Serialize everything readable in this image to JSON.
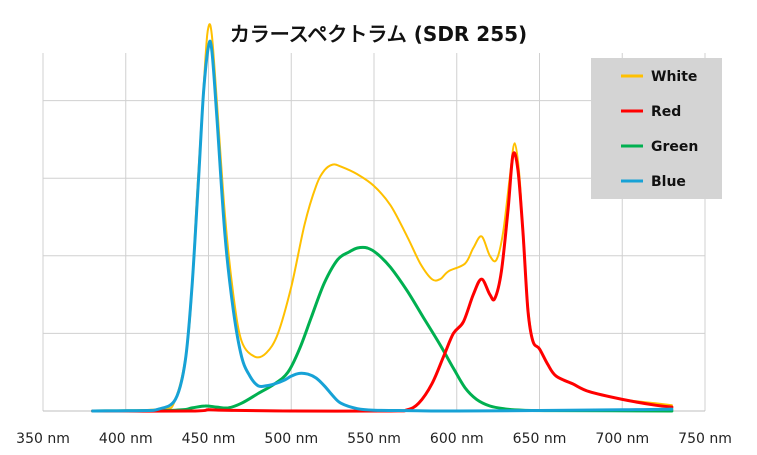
{
  "chart_data": {
    "type": "line",
    "title": "カラースペクトラム (SDR 255)",
    "xlabel": "",
    "ylabel": "",
    "xlim": [
      350,
      750
    ],
    "ylim": [
      0,
      1
    ],
    "grid": true,
    "legend_position": "top-right",
    "x_ticks": [
      350,
      400,
      450,
      500,
      550,
      600,
      650,
      700,
      750
    ],
    "x_tick_labels": [
      "350 nm",
      "400 nm",
      "450 nm",
      "500 nm",
      "550 nm",
      "600 nm",
      "650 nm",
      "700 nm",
      "750 nm"
    ],
    "y_gridlines": [
      0.2,
      0.4,
      0.6,
      0.8
    ],
    "series": [
      {
        "name": "White",
        "color": "#FFC000",
        "points": [
          [
            380,
            0
          ],
          [
            420,
            0.005
          ],
          [
            430,
            0.03
          ],
          [
            438,
            0.2
          ],
          [
            443,
            0.55
          ],
          [
            448,
            0.9
          ],
          [
            450,
            0.99
          ],
          [
            452,
            0.97
          ],
          [
            455,
            0.8
          ],
          [
            460,
            0.5
          ],
          [
            465,
            0.3
          ],
          [
            470,
            0.18
          ],
          [
            478,
            0.14
          ],
          [
            485,
            0.15
          ],
          [
            492,
            0.2
          ],
          [
            500,
            0.32
          ],
          [
            508,
            0.48
          ],
          [
            515,
            0.58
          ],
          [
            520,
            0.62
          ],
          [
            525,
            0.635
          ],
          [
            530,
            0.63
          ],
          [
            540,
            0.61
          ],
          [
            550,
            0.58
          ],
          [
            560,
            0.53
          ],
          [
            570,
            0.45
          ],
          [
            578,
            0.38
          ],
          [
            585,
            0.34
          ],
          [
            590,
            0.34
          ],
          [
            595,
            0.36
          ],
          [
            605,
            0.38
          ],
          [
            610,
            0.42
          ],
          [
            615,
            0.45
          ],
          [
            620,
            0.4
          ],
          [
            624,
            0.39
          ],
          [
            628,
            0.46
          ],
          [
            632,
            0.6
          ],
          [
            635,
            0.69
          ],
          [
            638,
            0.6
          ],
          [
            640,
            0.45
          ],
          [
            643,
            0.27
          ],
          [
            646,
            0.18
          ],
          [
            650,
            0.16
          ],
          [
            655,
            0.12
          ],
          [
            660,
            0.09
          ],
          [
            670,
            0.07
          ],
          [
            680,
            0.05
          ],
          [
            700,
            0.03
          ],
          [
            720,
            0.02
          ],
          [
            730,
            0.015
          ]
        ]
      },
      {
        "name": "Red",
        "color": "#FF0000",
        "points": [
          [
            380,
            0
          ],
          [
            440,
            0
          ],
          [
            450,
            0.003
          ],
          [
            460,
            0.002
          ],
          [
            500,
            0
          ],
          [
            560,
            0
          ],
          [
            570,
            0.003
          ],
          [
            577,
            0.02
          ],
          [
            585,
            0.07
          ],
          [
            592,
            0.14
          ],
          [
            598,
            0.2
          ],
          [
            604,
            0.23
          ],
          [
            610,
            0.3
          ],
          [
            615,
            0.34
          ],
          [
            620,
            0.3
          ],
          [
            623,
            0.29
          ],
          [
            627,
            0.36
          ],
          [
            631,
            0.52
          ],
          [
            634,
            0.66
          ],
          [
            637,
            0.62
          ],
          [
            640,
            0.46
          ],
          [
            643,
            0.26
          ],
          [
            646,
            0.18
          ],
          [
            650,
            0.16
          ],
          [
            655,
            0.12
          ],
          [
            660,
            0.09
          ],
          [
            670,
            0.07
          ],
          [
            680,
            0.05
          ],
          [
            700,
            0.03
          ],
          [
            720,
            0.015
          ],
          [
            730,
            0.01
          ]
        ]
      },
      {
        "name": "Green",
        "color": "#00B050",
        "points": [
          [
            380,
            0
          ],
          [
            430,
            0.002
          ],
          [
            440,
            0.008
          ],
          [
            448,
            0.013
          ],
          [
            455,
            0.01
          ],
          [
            462,
            0.008
          ],
          [
            470,
            0.02
          ],
          [
            480,
            0.045
          ],
          [
            490,
            0.07
          ],
          [
            498,
            0.1
          ],
          [
            505,
            0.16
          ],
          [
            512,
            0.24
          ],
          [
            520,
            0.33
          ],
          [
            528,
            0.39
          ],
          [
            535,
            0.41
          ],
          [
            540,
            0.42
          ],
          [
            546,
            0.42
          ],
          [
            552,
            0.405
          ],
          [
            560,
            0.37
          ],
          [
            570,
            0.31
          ],
          [
            580,
            0.24
          ],
          [
            590,
            0.17
          ],
          [
            598,
            0.11
          ],
          [
            605,
            0.06
          ],
          [
            612,
            0.03
          ],
          [
            620,
            0.013
          ],
          [
            630,
            0.005
          ],
          [
            640,
            0.002
          ],
          [
            660,
            0.001
          ],
          [
            730,
            0
          ]
        ]
      },
      {
        "name": "Blue",
        "color": "#17A2D6",
        "points": [
          [
            380,
            0
          ],
          [
            410,
            0.001
          ],
          [
            420,
            0.005
          ],
          [
            430,
            0.03
          ],
          [
            436,
            0.13
          ],
          [
            440,
            0.32
          ],
          [
            444,
            0.6
          ],
          [
            447,
            0.82
          ],
          [
            450,
            0.94
          ],
          [
            452,
            0.93
          ],
          [
            455,
            0.76
          ],
          [
            460,
            0.45
          ],
          [
            465,
            0.26
          ],
          [
            470,
            0.14
          ],
          [
            475,
            0.09
          ],
          [
            480,
            0.065
          ],
          [
            485,
            0.065
          ],
          [
            490,
            0.07
          ],
          [
            496,
            0.08
          ],
          [
            500,
            0.09
          ],
          [
            505,
            0.097
          ],
          [
            510,
            0.095
          ],
          [
            515,
            0.085
          ],
          [
            520,
            0.065
          ],
          [
            525,
            0.04
          ],
          [
            530,
            0.02
          ],
          [
            540,
            0.006
          ],
          [
            550,
            0.002
          ],
          [
            570,
            0.001
          ],
          [
            600,
            0
          ],
          [
            700,
            0.003
          ],
          [
            730,
            0.005
          ]
        ]
      }
    ]
  }
}
